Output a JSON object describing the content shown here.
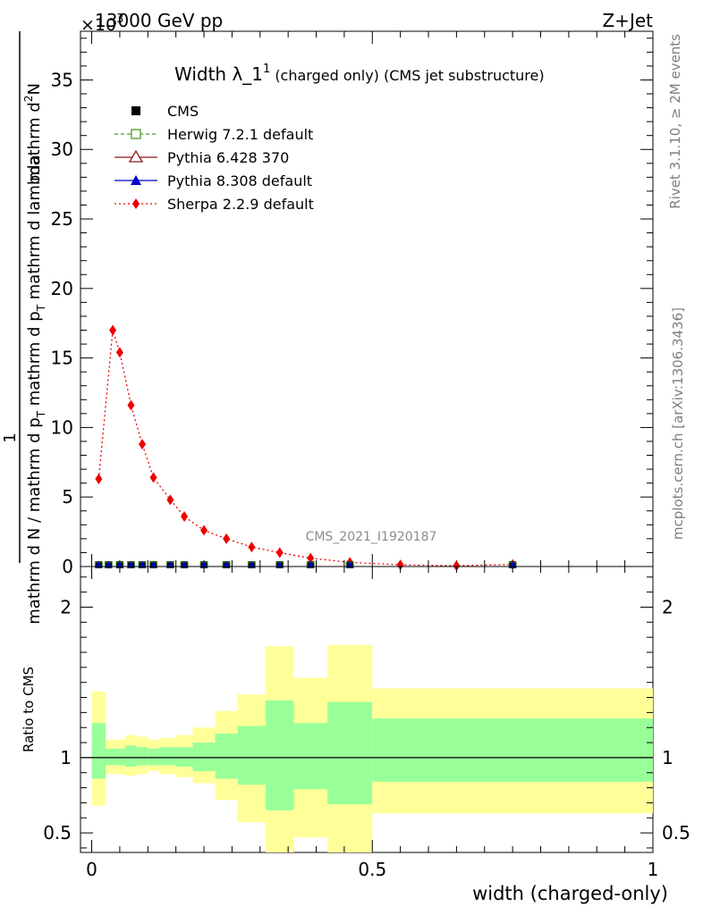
{
  "header": {
    "left": "13000 GeV pp",
    "right": "Z+Jet",
    "multiplier": "×10",
    "multiplier_exp": "3"
  },
  "main_title": {
    "main": "Width λ_1",
    "sup": "1",
    "sub": "(charged only) (CMS jet substructure)"
  },
  "side_texts": {
    "rivet": "Rivet 3.1.10, ≥ 2M events",
    "mcplots": "mcplots.cern.ch [arXiv:1306.3436]"
  },
  "watermark": "CMS_2021_I1920187",
  "y_label_top": {
    "line1": "1",
    "line2": "mathrm d N / mathrm d p",
    "line2_sub": "T",
    "line2_tail": " mathrm d p",
    "line2_sub2": "T",
    "line2_tail2": " mathrm d lambda",
    "num": "mathrm d",
    "num_sup": "2",
    "num_tail": "N"
  },
  "y_label_top_full": "mathrm d N / mathrm d p_T mathrm d p_T mathrm d lambda",
  "y_label_ratio": "Ratio to CMS",
  "x_label": "width (charged-only)",
  "legend": [
    {
      "label": "CMS",
      "color": "#000000",
      "marker": "square-filled",
      "line": "none"
    },
    {
      "label": "Herwig 7.2.1 default",
      "color": "#4c9a2a",
      "marker": "square-open",
      "line": "dashed"
    },
    {
      "label": "Pythia 6.428 370",
      "color": "#8b1a1a",
      "marker": "triangle-open",
      "line": "solid"
    },
    {
      "label": "Pythia 8.308 default",
      "color": "#0000cc",
      "marker": "triangle-filled",
      "line": "solid"
    },
    {
      "label": "Sherpa 2.2.9 default",
      "color": "#ee0000",
      "marker": "diamond-filled",
      "line": "dotted"
    }
  ],
  "chart_data": {
    "type": "line",
    "x_ticks_major": [
      "0",
      "0.5",
      "1"
    ],
    "x_tick_values": [
      0,
      0.5,
      1
    ],
    "xlim": [
      -0.02,
      1.0
    ],
    "main": {
      "ylim": [
        0,
        38.5
      ],
      "y_ticks": [
        0,
        5,
        10,
        15,
        20,
        25,
        30,
        35
      ],
      "y_tick_labels": [
        "0",
        "5",
        "10",
        "15",
        "20",
        "25",
        "30",
        "35"
      ],
      "unit_scale": "×10^3",
      "series": [
        {
          "name": "Sherpa 2.2.9 default",
          "x": [
            0.0125,
            0.0375,
            0.05,
            0.07,
            0.09,
            0.11,
            0.14,
            0.165,
            0.2,
            0.24,
            0.285,
            0.335,
            0.39,
            0.46,
            0.55,
            0.65,
            0.75
          ],
          "y": [
            6.3,
            17.0,
            15.4,
            11.6,
            8.8,
            6.4,
            4.8,
            3.6,
            2.6,
            2.0,
            1.4,
            1.0,
            0.6,
            0.3,
            0.12,
            0.06,
            0.15
          ]
        },
        {
          "name": "CMS",
          "x": [
            0.0125,
            0.03,
            0.05,
            0.07,
            0.09,
            0.11,
            0.14,
            0.165,
            0.2,
            0.24,
            0.285,
            0.335,
            0.39,
            0.46,
            0.75
          ],
          "y": [
            0.06,
            0.06,
            0.06,
            0.06,
            0.06,
            0.06,
            0.06,
            0.06,
            0.06,
            0.06,
            0.06,
            0.06,
            0.06,
            0.06,
            0.06
          ]
        }
      ]
    },
    "ratio": {
      "ylim": [
        0.37,
        2.27
      ],
      "y_ticks": [
        0.5,
        1,
        2
      ],
      "y_tick_labels": [
        "0.5",
        "1",
        "2"
      ],
      "reference": 1,
      "bands": [
        {
          "x0": 0.0,
          "x1": 0.025,
          "green": [
            0.86,
            1.23
          ],
          "yellow": [
            0.68,
            1.44
          ]
        },
        {
          "x0": 0.025,
          "x1": 0.06,
          "green": [
            0.95,
            1.06
          ],
          "yellow": [
            0.89,
            1.12
          ]
        },
        {
          "x0": 0.06,
          "x1": 0.08,
          "green": [
            0.94,
            1.08
          ],
          "yellow": [
            0.88,
            1.15
          ]
        },
        {
          "x0": 0.08,
          "x1": 0.1,
          "green": [
            0.95,
            1.07
          ],
          "yellow": [
            0.89,
            1.14
          ]
        },
        {
          "x0": 0.1,
          "x1": 0.12,
          "green": [
            0.95,
            1.06
          ],
          "yellow": [
            0.91,
            1.12
          ]
        },
        {
          "x0": 0.12,
          "x1": 0.15,
          "green": [
            0.95,
            1.07
          ],
          "yellow": [
            0.89,
            1.13
          ]
        },
        {
          "x0": 0.15,
          "x1": 0.18,
          "green": [
            0.94,
            1.07
          ],
          "yellow": [
            0.87,
            1.15
          ]
        },
        {
          "x0": 0.18,
          "x1": 0.22,
          "green": [
            0.91,
            1.1
          ],
          "yellow": [
            0.83,
            1.2
          ]
        },
        {
          "x0": 0.22,
          "x1": 0.26,
          "green": [
            0.86,
            1.16
          ],
          "yellow": [
            0.72,
            1.31
          ]
        },
        {
          "x0": 0.26,
          "x1": 0.31,
          "green": [
            0.82,
            1.21
          ],
          "yellow": [
            0.57,
            1.42
          ]
        },
        {
          "x0": 0.31,
          "x1": 0.36,
          "green": [
            0.65,
            1.38
          ],
          "yellow": [
            0.32,
            1.74
          ]
        },
        {
          "x0": 0.36,
          "x1": 0.42,
          "green": [
            0.79,
            1.23
          ],
          "yellow": [
            0.47,
            1.53
          ]
        },
        {
          "x0": 0.42,
          "x1": 0.5,
          "green": [
            0.69,
            1.37
          ],
          "yellow": [
            0.3,
            1.75
          ]
        },
        {
          "x0": 0.5,
          "x1": 1.0,
          "green": [
            0.84,
            1.26
          ],
          "yellow": [
            0.63,
            1.46
          ]
        }
      ]
    }
  }
}
